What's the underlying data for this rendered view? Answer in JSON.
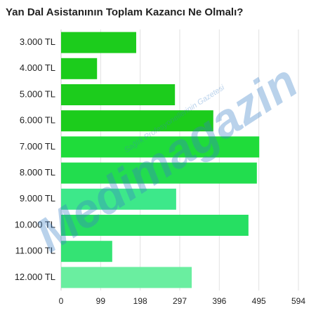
{
  "chart_data": {
    "type": "bar",
    "orientation": "horizontal",
    "title": "Yan Dal Asistanının Toplam Kazancı Ne Olmalı?",
    "categories": [
      "3.000 TL",
      "4.000 TL",
      "5.000 TL",
      "6.000 TL",
      "7.000 TL",
      "8.000 TL",
      "9.000 TL",
      "10.000 TL",
      "11.000 TL",
      "12.000 TL"
    ],
    "values": [
      188,
      90,
      285,
      381,
      496,
      490,
      288,
      469,
      128,
      327
    ],
    "colors": [
      "#1ccc1c",
      "#1ccc1c",
      "#1ccc1c",
      "#1ccc1c",
      "#1fdc3a",
      "#22dd4e",
      "#3de88a",
      "#26df62",
      "#34e374",
      "#6aeea0"
    ],
    "xlim": [
      0,
      594
    ],
    "xticks": [
      0,
      99,
      198,
      297,
      396,
      495,
      594
    ],
    "grid": true,
    "watermark": "Medimagazin",
    "watermark_subtitle": "Sağlık Profesyonellerinin Gazetesi"
  }
}
